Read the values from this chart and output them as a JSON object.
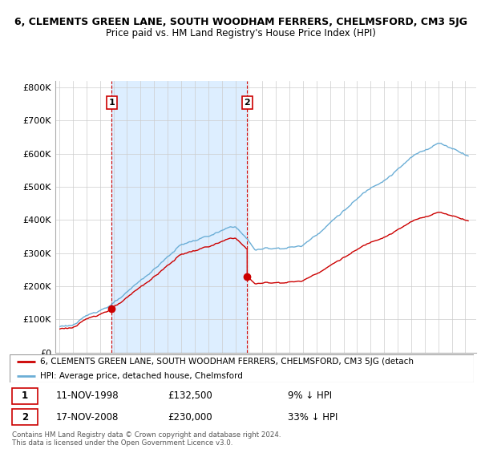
{
  "title1": "6, CLEMENTS GREEN LANE, SOUTH WOODHAM FERRERS, CHELMSFORD, CM3 5JG",
  "title2": "Price paid vs. HM Land Registry's House Price Index (HPI)",
  "legend_property": "6, CLEMENTS GREEN LANE, SOUTH WOODHAM FERRERS, CHELMSFORD, CM3 5JG (detach",
  "legend_hpi": "HPI: Average price, detached house, Chelmsford",
  "transaction1_date": "11-NOV-1998",
  "transaction1_price": 132500,
  "transaction1_label": "9% ↓ HPI",
  "transaction2_date": "17-NOV-2008",
  "transaction2_price": 230000,
  "transaction2_label": "33% ↓ HPI",
  "footer": "Contains HM Land Registry data © Crown copyright and database right 2024.\nThis data is licensed under the Open Government Licence v3.0.",
  "property_color": "#cc0000",
  "hpi_color": "#6baed6",
  "shade_color": "#ddeeff",
  "vline_color": "#cc0000",
  "ylim": [
    0,
    820000
  ],
  "yticks": [
    0,
    100000,
    200000,
    300000,
    400000,
    500000,
    600000,
    700000,
    800000
  ],
  "t1_year": 1998.863,
  "t2_year": 2008.877
}
